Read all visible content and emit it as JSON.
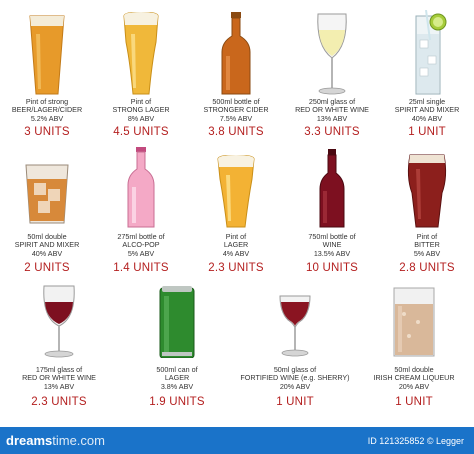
{
  "items": [
    {
      "line1": "Pint of strong",
      "line2": "BEER/LAGER/CIDER",
      "line3": "5.2% ABV",
      "units": "3 UNITS"
    },
    {
      "line1": "Pint of",
      "line2": "STRONG LAGER",
      "line3": "8% ABV",
      "units": "4.5 UNITS"
    },
    {
      "line1": "500ml bottle of",
      "line2": "STRONGER CIDER",
      "line3": "7.5% ABV",
      "units": "3.8 UNITS"
    },
    {
      "line1": "250ml glass of",
      "line2": "RED OR WHITE WINE",
      "line3": "13% ABV",
      "units": "3.3 UNITS"
    },
    {
      "line1": "25ml single",
      "line2": "SPIRIT AND MIXER",
      "line3": "40% ABV",
      "units": "1 UNIT"
    },
    {
      "line1": "50ml double",
      "line2": "SPIRIT AND MIXER",
      "line3": "40% ABV",
      "units": "2 UNITS"
    },
    {
      "line1": "275ml bottle of",
      "line2": "ALCO-POP",
      "line3": "5% ABV",
      "units": "1.4 UNITS"
    },
    {
      "line1": "Pint of",
      "line2": "LAGER",
      "line3": "4% ABV",
      "units": "2.3 UNITS"
    },
    {
      "line1": "750ml bottle of",
      "line2": "WINE",
      "line3": "13.5% ABV",
      "units": "10 UNITS"
    },
    {
      "line1": "Pint of",
      "line2": "BITTER",
      "line3": "5% ABV",
      "units": "2.8 UNITS"
    },
    {
      "line1": "175ml glass of",
      "line2": "RED OR WHITE WINE",
      "line3": "13% ABV",
      "units": "2.3 UNITS"
    },
    {
      "line1": "500ml can of",
      "line2": "LAGER",
      "line3": "3.8% ABV",
      "units": "1.9 UNITS"
    },
    {
      "line1": "50ml glass of",
      "line2": "FORTIFIED WINE (e.g. SHERRY)",
      "line3": "20% ABV",
      "units": "1 UNIT"
    },
    {
      "line1": "50ml double",
      "line2": "IRISH CREAM LIQUEUR",
      "line3": "20% ABV",
      "units": "1 UNIT"
    }
  ],
  "footer": {
    "brand_main": "dreams",
    "brand_tail": "time.com",
    "id_text": "ID 121325852 © Legger"
  },
  "colors": {
    "units_red": "#b42020",
    "footer_blue": "#1a73c9",
    "beer": "#e79a2a",
    "red_wine": "#7d1020",
    "pink": "#f4a9c6",
    "can_green": "#2e8b2e"
  }
}
